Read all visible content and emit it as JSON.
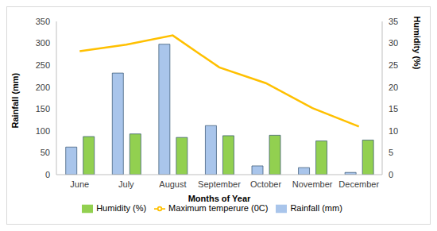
{
  "chart_data": {
    "type": "bar",
    "categories": [
      "June",
      "July",
      "August",
      "September",
      "October",
      "November",
      "December"
    ],
    "series": [
      {
        "name": "Rainfall (mm)",
        "type": "bar",
        "color": "#a9c5eb",
        "values": [
          63,
          232,
          298,
          112,
          20,
          16,
          5
        ]
      },
      {
        "name": "Humidity (%)",
        "type": "bar",
        "color": "#92d050",
        "values": [
          87,
          93,
          85,
          89,
          90,
          77,
          79
        ]
      },
      {
        "name": "Maximum temperure (0C)",
        "type": "line",
        "color": "#ffc000",
        "axis": "y2",
        "values": [
          28.2,
          29.7,
          31.8,
          24.5,
          20.9,
          15.2,
          11
        ]
      }
    ],
    "x_label": "Months of Year",
    "y_label": "Rainfall (mm)",
    "y2_label": "Humidity (%)",
    "ylim": [
      0,
      350
    ],
    "yticks": [
      0,
      50,
      100,
      150,
      200,
      250,
      300,
      350
    ],
    "y2lim": [
      0,
      35
    ],
    "y2ticks": [
      0,
      5,
      10,
      15,
      20,
      25,
      30,
      35
    ],
    "legend": "bottom",
    "grid": false
  }
}
